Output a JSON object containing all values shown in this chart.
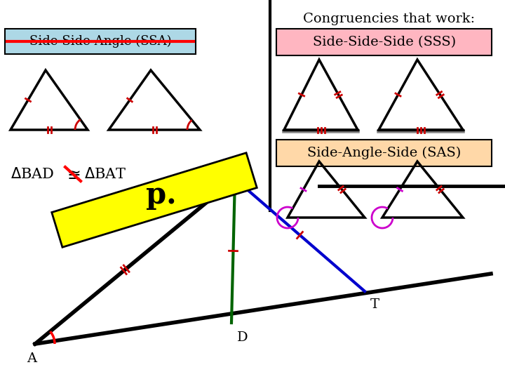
{
  "title": "Congruencies that work:",
  "ssa_label": "Side-Side-Angle (SSA)",
  "sss_label": "Side-Side-Side (SSS)",
  "sas_label": "Side-Angle-Side (SAS)",
  "p_label": "p.",
  "bg_color": "#ffffff",
  "ssa_box_color": "#add8e6",
  "sss_box_color": "#ffb6c1",
  "sas_box_color": "#ffd8a8",
  "yellow_color": "#ffff00",
  "black": "#000000",
  "red": "#cc0000",
  "green": "#006400",
  "blue": "#0000cd"
}
